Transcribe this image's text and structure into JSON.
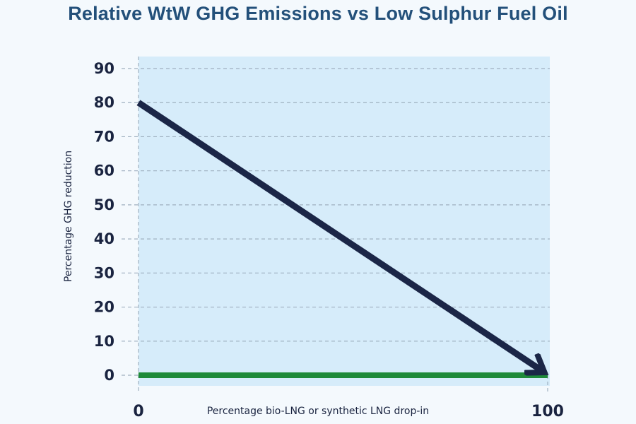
{
  "title": "Relative WtW GHG Emissions vs Low Sulphur Fuel Oil",
  "colors": {
    "plot_background": "#d6ecfa",
    "page_background": "#f4f9fd",
    "title": "#23507a",
    "arrow": "#1b2647",
    "baseline": "#1e8a3a",
    "grid": "#9fb0c0"
  },
  "chart_data": {
    "type": "line",
    "title": "Relative WtW GHG Emissions vs Low Sulphur Fuel Oil",
    "xlabel": "Percentage bio-LNG or synthetic LNG drop-in",
    "ylabel": "Percentage GHG reduction",
    "xlim": [
      0,
      100
    ],
    "ylim": [
      0,
      90
    ],
    "x_ticks": [
      "0",
      "100"
    ],
    "y_ticks": [
      "0",
      "10",
      "20",
      "30",
      "40",
      "50",
      "60",
      "70",
      "80",
      "90"
    ],
    "grid": true,
    "series": [
      {
        "x": [
          0,
          100
        ],
        "y": [
          80,
          0
        ],
        "style": "arrow"
      },
      {
        "x": [
          0,
          100
        ],
        "y": [
          0,
          0
        ],
        "style": "baseline"
      }
    ]
  }
}
